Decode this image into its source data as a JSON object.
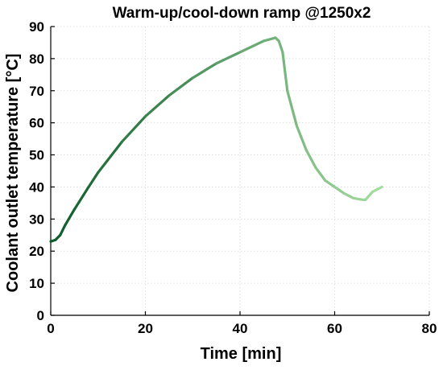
{
  "chart_data": {
    "type": "line",
    "title": "Warm-up/cool-down ramp  @1250x2",
    "xlabel": "Time [min]",
    "ylabel": "Coolant outlet temperature [°C]",
    "xlim": [
      0,
      80
    ],
    "ylim": [
      0,
      90
    ],
    "xticks": [
      0,
      20,
      40,
      60,
      80
    ],
    "yticks": [
      0,
      10,
      20,
      30,
      40,
      50,
      60,
      70,
      80,
      90
    ],
    "grid": true,
    "legend": "none",
    "colors": {
      "start": "#0b5a2a",
      "end": "#a6dda1"
    },
    "series": [
      {
        "x": [
          0,
          1,
          2,
          3,
          5,
          8,
          10,
          15,
          20,
          25,
          30,
          35,
          40,
          45,
          47.5,
          48.2,
          49,
          49.5,
          50,
          52,
          54,
          56,
          58,
          60,
          62,
          64,
          66,
          66.5,
          68,
          70
        ],
        "y": [
          23,
          23.5,
          25,
          28,
          33,
          40,
          44.5,
          54,
          62,
          68.5,
          74,
          78.5,
          82,
          85.5,
          86.5,
          85.5,
          82,
          76,
          70,
          59,
          51.5,
          46,
          42,
          40,
          38,
          36.5,
          36,
          36,
          38.5,
          40
        ]
      }
    ]
  }
}
